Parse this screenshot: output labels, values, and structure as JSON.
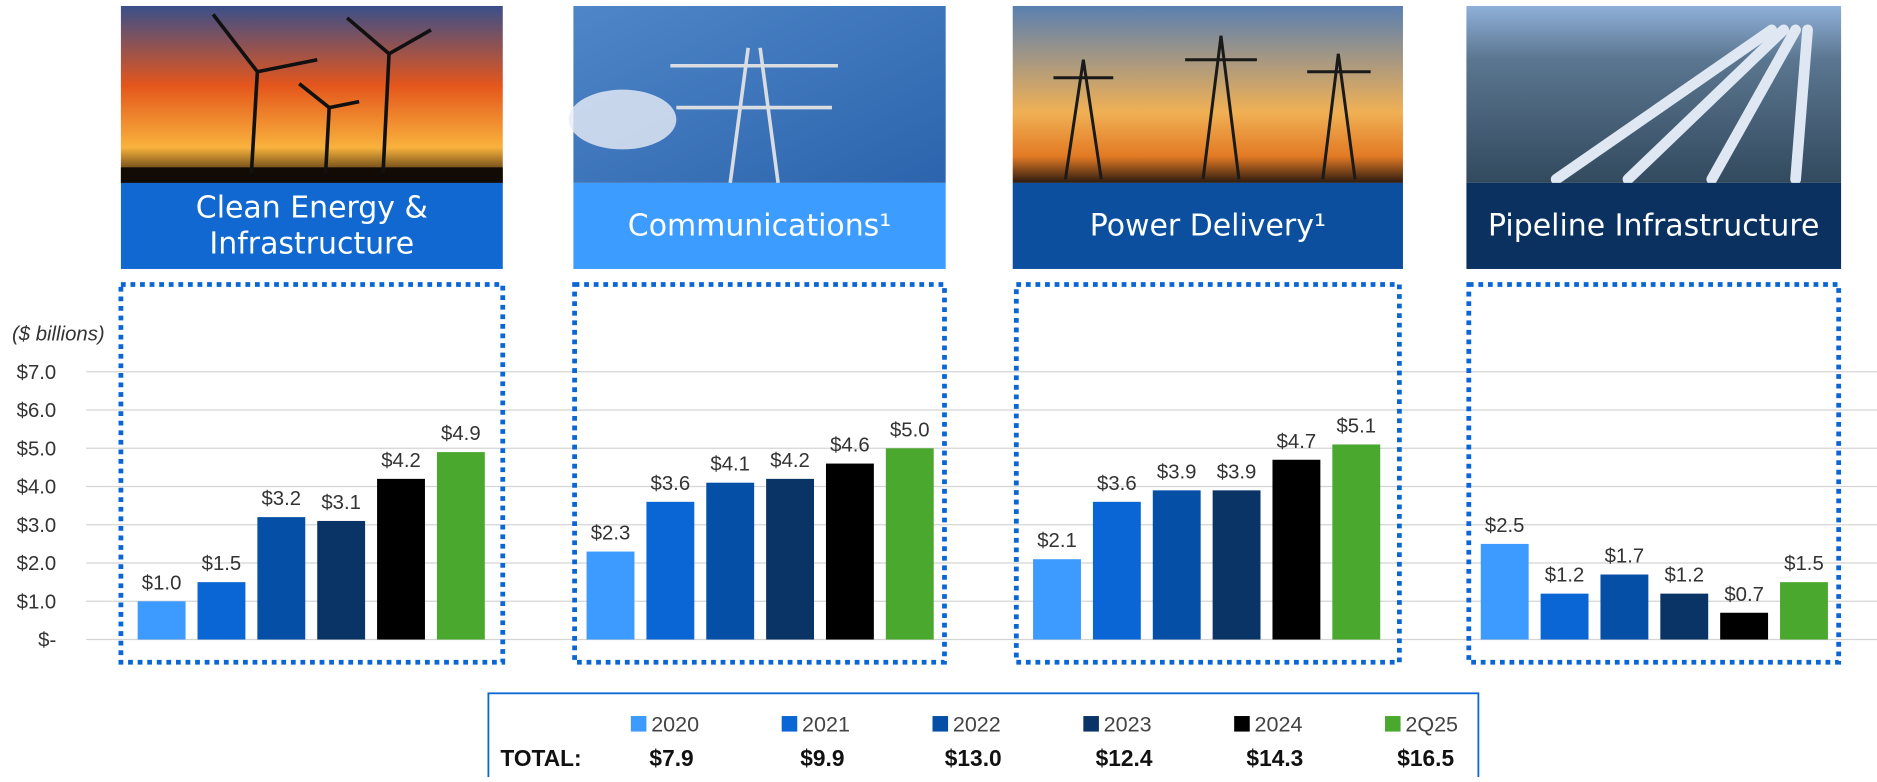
{
  "chart_data": {
    "type": "bar",
    "y_label": "($ billions)",
    "categories": [
      "Clean Energy & Infrastructure",
      "Communications¹",
      "Power Delivery¹",
      "Pipeline Infrastructure"
    ],
    "category_colors": [
      "#1068d0",
      "#3d9cff",
      "#0b4f9e",
      "#0b3160"
    ],
    "ylim": [
      0,
      7
    ],
    "yticks": [
      {
        "value": 0,
        "label": "$-"
      },
      {
        "value": 1,
        "label": "$1.0"
      },
      {
        "value": 2,
        "label": "$2.0"
      },
      {
        "value": 3,
        "label": "$3.0"
      },
      {
        "value": 4,
        "label": "$4.0"
      },
      {
        "value": 5,
        "label": "$5.0"
      },
      {
        "value": 6,
        "label": "$6.0"
      },
      {
        "value": 7,
        "label": "$7.0"
      }
    ],
    "grid": true,
    "series": [
      {
        "name": "2020",
        "color": "#3d9bff",
        "values": [
          1.0,
          2.3,
          2.1,
          2.5
        ],
        "value_labels": [
          "$1.0",
          "$2.3",
          "$2.1",
          "$2.5"
        ]
      },
      {
        "name": "2021",
        "color": "#0a66d4",
        "values": [
          1.5,
          3.6,
          3.6,
          1.2
        ],
        "value_labels": [
          "$1.5",
          "$3.6",
          "$3.6",
          "$1.2"
        ]
      },
      {
        "name": "2022",
        "color": "#0550a6",
        "values": [
          3.2,
          4.1,
          3.9,
          1.7
        ],
        "value_labels": [
          "$3.2",
          "$4.1",
          "$3.9",
          "$1.7"
        ]
      },
      {
        "name": "2023",
        "color": "#0b3466",
        "values": [
          3.1,
          4.2,
          3.9,
          1.2
        ],
        "value_labels": [
          "$3.1",
          "$4.2",
          "$3.9",
          "$1.2"
        ]
      },
      {
        "name": "2024",
        "color": "#000000",
        "values": [
          4.2,
          4.6,
          4.7,
          0.7
        ],
        "value_labels": [
          "$4.2",
          "$4.6",
          "$4.7",
          "$0.7"
        ]
      },
      {
        "name": "2Q25",
        "color": "#4aa82e",
        "values": [
          4.9,
          5.0,
          5.1,
          1.5
        ],
        "value_labels": [
          "$4.9",
          "$5.0",
          "$5.1",
          "$1.5"
        ]
      }
    ],
    "totals": {
      "label": "TOTAL:",
      "values": [
        "$7.9",
        "$9.9",
        "$13.0",
        "$12.4",
        "$14.3",
        "$16.5"
      ]
    }
  }
}
